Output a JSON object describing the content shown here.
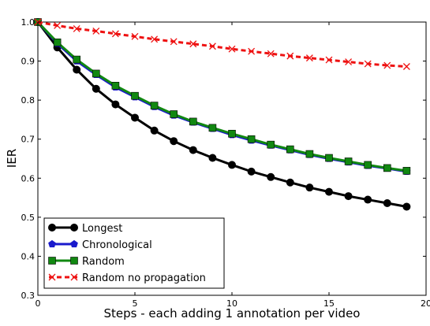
{
  "chart_data": {
    "type": "line",
    "title": "",
    "xlabel": "Steps - each adding 1 annotation per video",
    "ylabel": "IER",
    "xlim": [
      0,
      20
    ],
    "ylim": [
      0.3,
      1.0
    ],
    "xticks": [
      0,
      5,
      10,
      15,
      20
    ],
    "xtick_labels": [
      "0",
      "5",
      "10",
      "15",
      "20"
    ],
    "yticks": [
      0.3,
      0.4,
      0.5,
      0.6,
      0.7,
      0.8,
      0.9,
      1.0
    ],
    "ytick_labels": [
      "0.3",
      "0.4",
      "0.5",
      "0.6",
      "0.7",
      "0.8",
      "0.9",
      "1.0"
    ],
    "grid": false,
    "legend_position": "lower-left",
    "x": [
      0,
      1,
      2,
      3,
      4,
      5,
      6,
      7,
      8,
      9,
      10,
      11,
      12,
      13,
      14,
      15,
      16,
      17,
      18,
      19
    ],
    "series": [
      {
        "name": "Longest",
        "color": "#000000",
        "marker": "circle",
        "line_style": "solid",
        "values": [
          1.0,
          0.935,
          0.878,
          0.829,
          0.789,
          0.755,
          0.722,
          0.695,
          0.672,
          0.652,
          0.634,
          0.617,
          0.603,
          0.589,
          0.576,
          0.565,
          0.554,
          0.545,
          0.536,
          0.527
        ]
      },
      {
        "name": "Chronological",
        "color": "#1a1acc",
        "marker": "pentagon",
        "line_style": "solid",
        "values": [
          1.0,
          0.945,
          0.9,
          0.865,
          0.833,
          0.808,
          0.783,
          0.761,
          0.743,
          0.727,
          0.711,
          0.697,
          0.684,
          0.672,
          0.66,
          0.65,
          0.641,
          0.632,
          0.625,
          0.617
        ]
      },
      {
        "name": "Random",
        "color": "#118811",
        "marker": "square",
        "line_style": "solid",
        "values": [
          1.0,
          0.948,
          0.904,
          0.868,
          0.837,
          0.811,
          0.786,
          0.764,
          0.745,
          0.729,
          0.714,
          0.7,
          0.686,
          0.674,
          0.662,
          0.652,
          0.643,
          0.634,
          0.626,
          0.619
        ]
      },
      {
        "name": "Random no propagation",
        "color": "#ee1111",
        "marker": "x",
        "line_style": "dashed",
        "values": [
          1.0,
          0.991,
          0.983,
          0.977,
          0.97,
          0.963,
          0.956,
          0.95,
          0.944,
          0.938,
          0.931,
          0.925,
          0.919,
          0.913,
          0.908,
          0.903,
          0.898,
          0.893,
          0.889,
          0.886
        ]
      }
    ]
  }
}
